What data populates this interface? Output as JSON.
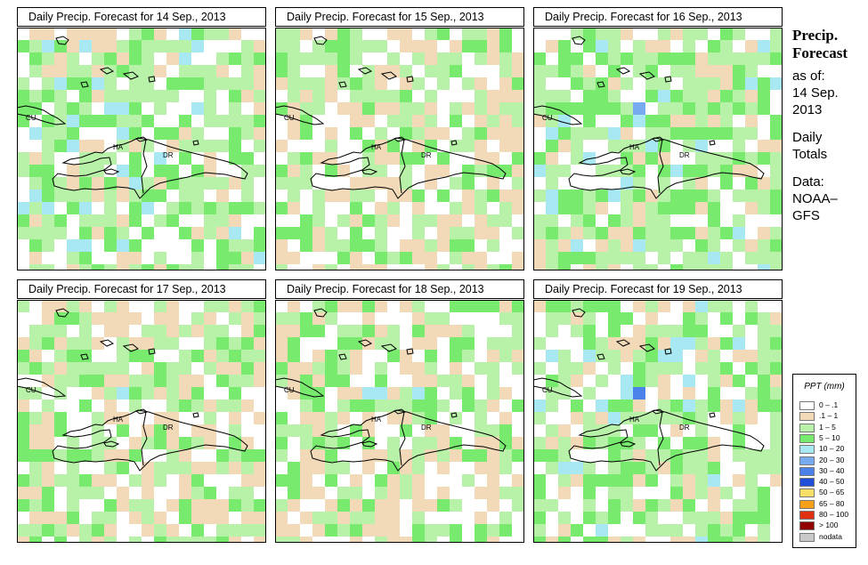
{
  "panels": [
    {
      "title": "Daily Precip. Forecast for  14 Sep., 2013",
      "seed": 14,
      "hot": [
        [
          8,
          6,
          4
        ],
        [
          7,
          7,
          3
        ],
        [
          10,
          7,
          3
        ],
        [
          12,
          8,
          3
        ],
        [
          4,
          7,
          4
        ]
      ]
    },
    {
      "title": "Daily Precip. Forecast for  15 Sep., 2013",
      "seed": 15,
      "hot": [
        [
          6,
          4,
          3
        ],
        [
          7,
          6,
          3
        ]
      ]
    },
    {
      "title": "Daily Precip. Forecast for  16 Sep., 2013",
      "seed": 16,
      "hot": [
        [
          8,
          6,
          5
        ],
        [
          6,
          8,
          4
        ],
        [
          9,
          9,
          4
        ],
        [
          7,
          10,
          3
        ],
        [
          4,
          10,
          4
        ],
        [
          1,
          9,
          3
        ],
        [
          10,
          9,
          3
        ],
        [
          9,
          10,
          3
        ]
      ]
    },
    {
      "title": "Daily Precip. Forecast for  17 Sep., 2013",
      "seed": 17,
      "hot": [
        [
          8,
          7,
          4
        ],
        [
          9,
          7,
          3
        ],
        [
          0,
          11,
          3
        ],
        [
          0,
          12,
          3
        ],
        [
          0,
          10,
          3
        ]
      ]
    },
    {
      "title": "Daily Precip. Forecast for  18 Sep., 2013",
      "seed": 18,
      "hot": [
        [
          7,
          7,
          4
        ],
        [
          8,
          7,
          4
        ],
        [
          11,
          7,
          4
        ],
        [
          1,
          4,
          3
        ]
      ]
    },
    {
      "title": "Daily Precip. Forecast for  19 Sep., 2013",
      "seed": 19,
      "hot": [
        [
          7,
          7,
          4
        ],
        [
          8,
          7,
          6
        ],
        [
          6,
          8,
          3
        ],
        [
          5,
          8,
          4
        ],
        [
          6,
          9,
          4
        ],
        [
          9,
          10,
          3
        ]
      ]
    }
  ],
  "map_labels": {
    "cu": "CU",
    "ha": "HA",
    "dr": "DR"
  },
  "side": {
    "title_line1": "Precip.",
    "title_line2": "Forecast",
    "asof": "as of:",
    "date_line1": "14 Sep.",
    "date_line2": "2013",
    "totals_line1": "Daily",
    "totals_line2": "Totals",
    "data_line1": "Data:",
    "data_line2": "NOAA–",
    "data_line3": "GFS"
  },
  "legend": {
    "title": "PPT (mm)",
    "items": [
      {
        "label": "0 – .1",
        "color": "#ffffff"
      },
      {
        "label": ".1 – 1",
        "color": "#f2d9b8"
      },
      {
        "label": "1 – 5",
        "color": "#b8f2a8"
      },
      {
        "label": "5 – 10",
        "color": "#78ea6e"
      },
      {
        "label": "10 – 20",
        "color": "#a8e8f2"
      },
      {
        "label": "20 – 30",
        "color": "#78aaf0"
      },
      {
        "label": "30 – 40",
        "color": "#4a82ea"
      },
      {
        "label": "40 – 50",
        "color": "#1f4fd8"
      },
      {
        "label": "50 – 65",
        "color": "#f8e068"
      },
      {
        "label": "65 – 80",
        "color": "#f8a018"
      },
      {
        "label": "80 – 100",
        "color": "#e03010"
      },
      {
        "label": "> 100",
        "color": "#900000"
      },
      {
        "label": "nodata",
        "color": "#c8c8c8"
      }
    ]
  }
}
